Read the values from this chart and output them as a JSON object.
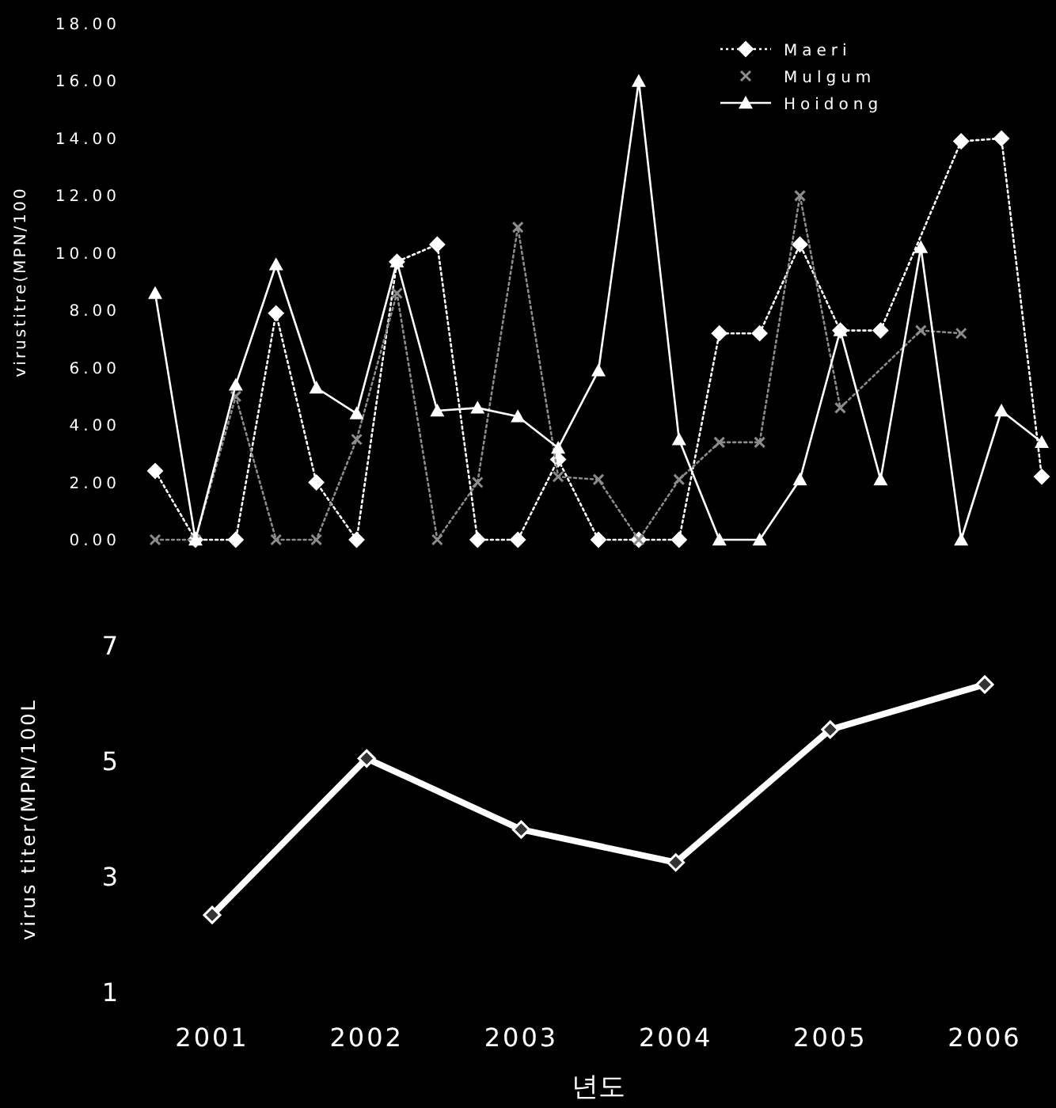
{
  "chart_data": [
    {
      "type": "line",
      "ylabel": "virustitre(MPN/100",
      "categories": [
        null,
        null,
        null,
        null,
        null,
        null,
        null,
        null,
        null,
        null,
        null,
        null,
        null,
        null,
        null,
        null,
        null,
        null,
        null,
        null,
        null,
        null,
        null
      ],
      "series": [
        {
          "name": "Maeri",
          "color": "#ffffff",
          "marker": "diamond",
          "line_style": "dotted",
          "values": [
            2.4,
            0,
            0,
            7.9,
            2.0,
            0,
            9.7,
            10.3,
            0,
            0,
            2.8,
            0,
            0,
            0,
            7.2,
            7.2,
            10.3,
            7.3,
            7.3,
            null,
            13.9,
            14.0,
            2.2
          ]
        },
        {
          "name": "Mulgum",
          "color": "#8c8c8c",
          "marker": "cross",
          "line_style": "dotted",
          "values": [
            0,
            0,
            5.0,
            0,
            0,
            3.5,
            8.6,
            0,
            2.0,
            10.9,
            2.2,
            2.1,
            0,
            2.1,
            3.4,
            3.4,
            12.0,
            4.6,
            null,
            7.3,
            7.2,
            null,
            null
          ]
        },
        {
          "name": "Hoidong",
          "color": "#ffffff",
          "marker": "triangle",
          "line_style": "solid",
          "values": [
            8.6,
            0,
            5.4,
            9.6,
            5.3,
            4.4,
            9.7,
            4.5,
            4.6,
            4.3,
            3.2,
            5.9,
            16.0,
            3.5,
            0,
            0,
            2.1,
            7.3,
            2.1,
            10.2,
            0,
            4.5,
            3.4
          ]
        }
      ],
      "ylim": [
        0,
        18
      ],
      "yticks": [
        {
          "value": 0,
          "label": "0.00"
        },
        {
          "value": 2,
          "label": "2.00"
        },
        {
          "value": 4,
          "label": "4.00"
        },
        {
          "value": 6,
          "label": "6.00"
        },
        {
          "value": 8,
          "label": "8.00"
        },
        {
          "value": 10,
          "label": "10.00"
        },
        {
          "value": 12,
          "label": "12.00"
        },
        {
          "value": 14,
          "label": "14.00"
        },
        {
          "value": 16,
          "label": "16.00"
        },
        {
          "value": 18,
          "label": "18.00"
        }
      ],
      "tick_labels": "y",
      "legend": "top"
    },
    {
      "type": "line",
      "ylabel": "virus titer(MPN/100L",
      "xlabel": "년도",
      "categories": [
        "2001",
        "2002",
        "2003",
        "2004",
        "2005",
        "2006"
      ],
      "values": [
        2.34,
        5.05,
        3.82,
        3.25,
        5.55,
        6.33
      ],
      "color": "#ffffff",
      "marker": "diamond",
      "line_style": "solid",
      "ylim": [
        1,
        7
      ],
      "yticks": [
        1,
        3,
        5,
        7
      ]
    }
  ]
}
